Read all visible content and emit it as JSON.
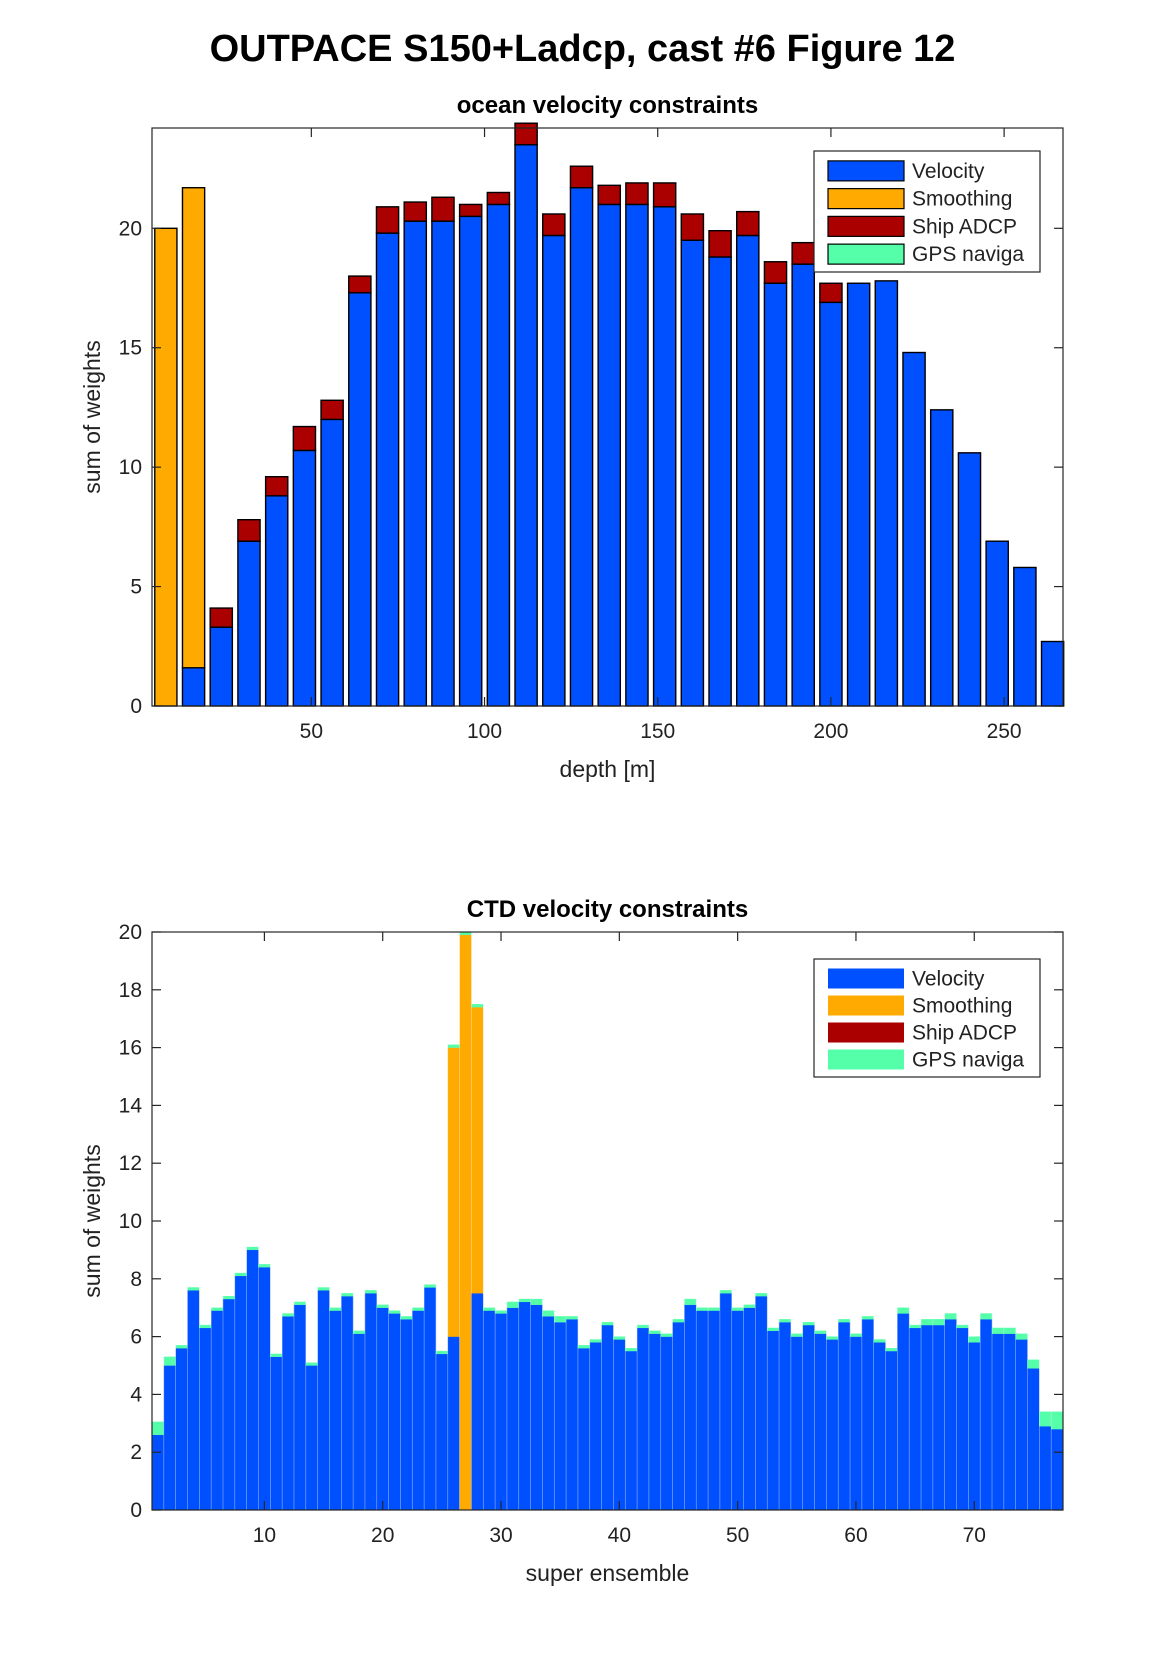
{
  "figure": {
    "suptitle": "OUTPACE S150+Ladcp, cast #6  Figure 12"
  },
  "colors": {
    "velocity": "#0050ff",
    "smoothing": "#ffaa00",
    "ship_adcp": "#aa0000",
    "gps_navigation": "#55ffaa"
  },
  "chart_data": [
    {
      "type": "bar",
      "stacked": true,
      "title": "ocean velocity constraints",
      "xlabel": "depth [m]",
      "ylabel": "sum of weights",
      "xlim": [
        4,
        267
      ],
      "ylim": [
        0,
        24.2
      ],
      "xticks": [
        50,
        100,
        150,
        200,
        250
      ],
      "yticks": [
        0,
        5,
        10,
        15,
        20
      ],
      "legend_position": "top-right",
      "legend": [
        "Velocity",
        "Smoothing",
        "Ship ADCP",
        "GPS naviga"
      ],
      "x": [
        8,
        16,
        24,
        32,
        40,
        48,
        56,
        64,
        72,
        80,
        88,
        96,
        104,
        112,
        120,
        128,
        136,
        144,
        152,
        160,
        168,
        176,
        184,
        192,
        200,
        208,
        216,
        224,
        232,
        240,
        248,
        256,
        264
      ],
      "series": [
        {
          "name": "Velocity",
          "values": [
            0,
            1.6,
            3.3,
            6.9,
            8.8,
            10.7,
            12.0,
            17.3,
            19.8,
            20.3,
            20.3,
            20.5,
            21.0,
            23.5,
            19.7,
            21.7,
            21.0,
            21.0,
            20.9,
            19.5,
            18.8,
            19.7,
            17.7,
            18.5,
            16.9,
            17.7,
            17.8,
            14.8,
            12.4,
            10.6,
            6.9,
            5.8,
            2.7
          ]
        },
        {
          "name": "Smoothing",
          "values": [
            20.0,
            20.1,
            0,
            0,
            0,
            0,
            0,
            0,
            0,
            0,
            0,
            0,
            0,
            0,
            0,
            0,
            0,
            0,
            0,
            0,
            0,
            0,
            0,
            0,
            0,
            0,
            0,
            0,
            0,
            0,
            0,
            0,
            0
          ]
        },
        {
          "name": "Ship ADCP",
          "values": [
            0,
            0,
            0.8,
            0.9,
            0.8,
            1.0,
            0.8,
            0.7,
            1.1,
            0.8,
            1.0,
            0.5,
            0.5,
            0.9,
            0.9,
            0.9,
            0.8,
            0.9,
            1.0,
            1.1,
            1.1,
            1.0,
            0.9,
            0.9,
            0.8,
            0,
            0,
            0,
            0,
            0,
            0,
            0,
            0
          ]
        },
        {
          "name": "GPS naviga",
          "values": [
            0,
            0,
            0,
            0,
            0,
            0,
            0,
            0,
            0,
            0,
            0,
            0,
            0,
            0,
            0,
            0,
            0,
            0,
            0,
            0,
            0,
            0,
            0,
            0,
            0,
            0,
            0,
            0,
            0,
            0,
            0,
            0,
            0
          ]
        }
      ]
    },
    {
      "type": "bar",
      "stacked": true,
      "title": "CTD velocity constraints",
      "xlabel": "super ensemble",
      "ylabel": "sum of weights",
      "xlim": [
        0.5,
        77.5
      ],
      "ylim": [
        0,
        20
      ],
      "xticks": [
        10,
        20,
        30,
        40,
        50,
        60,
        70
      ],
      "yticks": [
        0,
        2,
        4,
        6,
        8,
        10,
        12,
        14,
        16,
        18,
        20
      ],
      "legend_position": "top-right",
      "legend": [
        "Velocity",
        "Smoothing",
        "Ship ADCP",
        "GPS naviga"
      ],
      "x": [
        1,
        2,
        3,
        4,
        5,
        6,
        7,
        8,
        9,
        10,
        11,
        12,
        13,
        14,
        15,
        16,
        17,
        18,
        19,
        20,
        21,
        22,
        23,
        24,
        25,
        26,
        27,
        28,
        29,
        30,
        31,
        32,
        33,
        34,
        35,
        36,
        37,
        38,
        39,
        40,
        41,
        42,
        43,
        44,
        45,
        46,
        47,
        48,
        49,
        50,
        51,
        52,
        53,
        54,
        55,
        56,
        57,
        58,
        59,
        60,
        61,
        62,
        63,
        64,
        65,
        66,
        67,
        68,
        69,
        70,
        71,
        72,
        73,
        74,
        75,
        76,
        77
      ],
      "series": [
        {
          "name": "Velocity",
          "values": [
            2.6,
            5.0,
            5.6,
            7.6,
            6.3,
            6.9,
            7.3,
            8.1,
            9.0,
            8.4,
            5.3,
            6.7,
            7.1,
            5.0,
            7.6,
            6.9,
            7.4,
            6.1,
            7.5,
            7.0,
            6.8,
            6.6,
            6.9,
            7.7,
            5.4,
            6.0,
            0,
            7.5,
            6.9,
            6.8,
            7.0,
            7.2,
            7.1,
            6.7,
            6.5,
            6.6,
            5.6,
            5.8,
            6.4,
            5.9,
            5.5,
            6.3,
            6.1,
            6.0,
            6.5,
            7.1,
            6.9,
            6.9,
            7.5,
            6.9,
            7.0,
            7.4,
            6.2,
            6.5,
            6.0,
            6.4,
            6.1,
            5.9,
            6.5,
            6.0,
            6.6,
            5.8,
            5.5,
            6.8,
            6.3,
            6.4,
            6.4,
            6.6,
            6.3,
            5.8,
            6.6,
            6.1,
            6.1,
            5.9,
            4.9,
            2.9,
            2.8
          ]
        },
        {
          "name": "Smoothing",
          "values": [
            0,
            0,
            0,
            0,
            0,
            0,
            0,
            0,
            0,
            0,
            0,
            0,
            0,
            0,
            0,
            0,
            0,
            0,
            0,
            0,
            0,
            0,
            0,
            0,
            0,
            10.0,
            19.9,
            9.9,
            0,
            0,
            0,
            0,
            0,
            0,
            0,
            0,
            0,
            0,
            0,
            0,
            0,
            0,
            0,
            0,
            0,
            0,
            0,
            0,
            0,
            0,
            0,
            0,
            0,
            0,
            0,
            0,
            0,
            0,
            0,
            0,
            0,
            0,
            0,
            0,
            0,
            0,
            0,
            0,
            0,
            0,
            0,
            0,
            0,
            0,
            0,
            0,
            0
          ]
        },
        {
          "name": "Ship ADCP",
          "values": [
            0,
            0,
            0,
            0,
            0,
            0,
            0,
            0,
            0,
            0,
            0,
            0,
            0,
            0,
            0,
            0,
            0,
            0,
            0,
            0,
            0,
            0,
            0,
            0,
            0,
            0,
            0,
            0,
            0,
            0,
            0,
            0,
            0,
            0,
            0,
            0,
            0,
            0,
            0,
            0,
            0,
            0,
            0,
            0,
            0,
            0,
            0,
            0,
            0,
            0,
            0,
            0,
            0,
            0,
            0,
            0,
            0,
            0,
            0,
            0,
            0,
            0,
            0,
            0,
            0,
            0,
            0,
            0,
            0,
            0,
            0,
            0,
            0,
            0,
            0,
            0,
            0
          ]
        },
        {
          "name": "GPS naviga",
          "values": [
            0.45,
            0.3,
            0.1,
            0.1,
            0.1,
            0.1,
            0.1,
            0.1,
            0.1,
            0.1,
            0.1,
            0.1,
            0.1,
            0.1,
            0.1,
            0.1,
            0.1,
            0.1,
            0.1,
            0.1,
            0.1,
            0.1,
            0.1,
            0.1,
            0.1,
            0.1,
            0.1,
            0.1,
            0.1,
            0.1,
            0.2,
            0.1,
            0.2,
            0.2,
            0.2,
            0.1,
            0.1,
            0.1,
            0.1,
            0.1,
            0.1,
            0.1,
            0.1,
            0.1,
            0.1,
            0.2,
            0.1,
            0.1,
            0.1,
            0.1,
            0.1,
            0.1,
            0.1,
            0.1,
            0.1,
            0.1,
            0.1,
            0.1,
            0.1,
            0.1,
            0.1,
            0.1,
            0.1,
            0.2,
            0.1,
            0.2,
            0.2,
            0.2,
            0.1,
            0.2,
            0.2,
            0.2,
            0.2,
            0.2,
            0.3,
            0.5,
            0.6
          ]
        }
      ]
    }
  ]
}
